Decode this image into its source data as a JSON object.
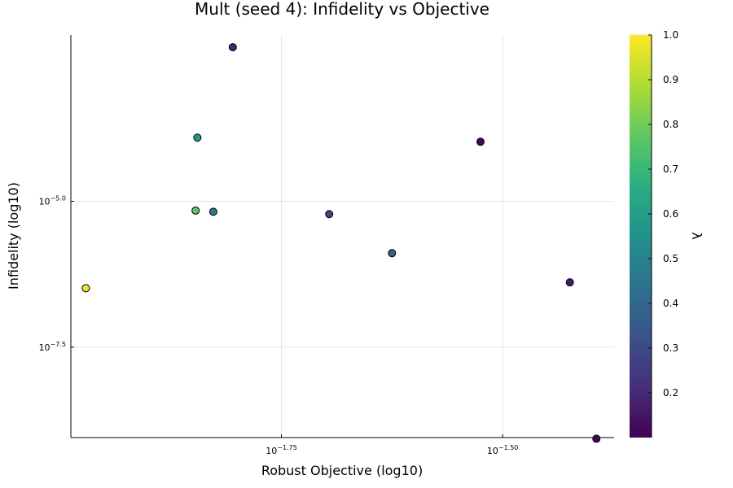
{
  "chart_data": {
    "type": "scatter",
    "title": "Mult (seed 4): Infidelity vs Objective",
    "xlabel": "Robust Objective (log10)",
    "ylabel": "Infidelity (log10)",
    "xscale": "log10",
    "yscale": "log10",
    "xlim": [
      -1.988,
      -1.374
    ],
    "ylim": [
      -9.05,
      -2.15
    ],
    "grid": true,
    "x_ticks": [
      {
        "value": -1.75,
        "base": "10",
        "exp": "−1.75"
      },
      {
        "value": -1.5,
        "base": "10",
        "exp": "−1.50"
      }
    ],
    "y_ticks": [
      {
        "value": -5.0,
        "base": "10",
        "exp": "−5.0"
      },
      {
        "value": -7.5,
        "base": "10",
        "exp": "−7.5"
      }
    ],
    "colorbar": {
      "label": "λ",
      "colormap": "viridis",
      "range": [
        0.1,
        1.0
      ],
      "ticks": [
        "0.2",
        "0.3",
        "0.4",
        "0.5",
        "0.6",
        "0.7",
        "0.8",
        "0.9",
        "1.0"
      ]
    },
    "points": [
      {
        "x": -1.971,
        "y": -6.49,
        "lambda": 0.98
      },
      {
        "x": -1.847,
        "y": -5.16,
        "lambda": 0.77
      },
      {
        "x": -1.845,
        "y": -3.91,
        "lambda": 0.57
      },
      {
        "x": -1.827,
        "y": -5.18,
        "lambda": 0.47
      },
      {
        "x": -1.805,
        "y": -2.36,
        "lambda": 0.2
      },
      {
        "x": -1.696,
        "y": -5.22,
        "lambda": 0.28
      },
      {
        "x": -1.625,
        "y": -5.89,
        "lambda": 0.38
      },
      {
        "x": -1.525,
        "y": -3.98,
        "lambda": 0.12
      },
      {
        "x": -1.424,
        "y": -6.39,
        "lambda": 0.17
      },
      {
        "x": -1.394,
        "y": -9.07,
        "lambda": 0.11
      }
    ]
  }
}
